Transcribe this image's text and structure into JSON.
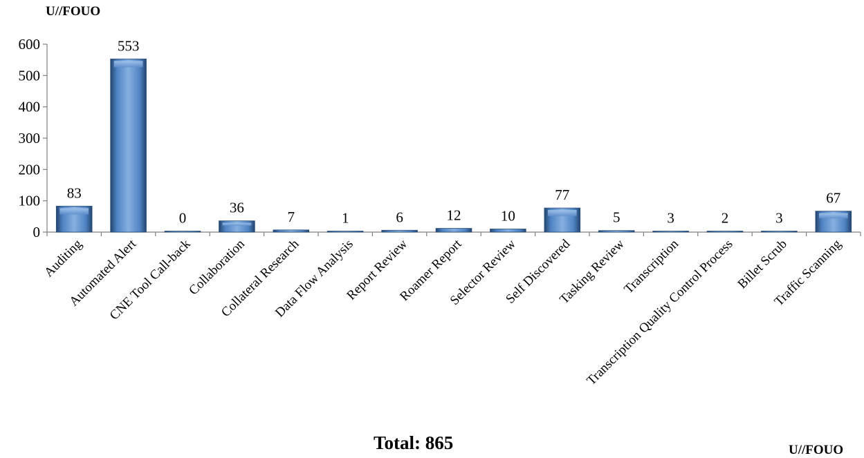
{
  "markings": {
    "top": "U//FOUO",
    "bottom": "U//FOUO"
  },
  "total_label": "Total: 865",
  "chart_data": {
    "type": "bar",
    "categories": [
      "Auditing",
      "Automated Alert",
      "CNE Tool Call-back",
      "Collaboration",
      "Collateral Research",
      "Data Flow Analysis",
      "Report Review",
      "Roamer Report",
      "Selector Review",
      "Self Discovered",
      "Tasking Review",
      "Transcription",
      "Transcription Quality Control Process",
      "Billet Scrub",
      "Traffic Scanning"
    ],
    "values": [
      83,
      553,
      0,
      36,
      7,
      1,
      6,
      12,
      10,
      77,
      5,
      3,
      2,
      3,
      67
    ],
    "ylim": [
      0,
      600
    ],
    "yticks": [
      0,
      100,
      200,
      300,
      400,
      500,
      600
    ],
    "grid": false,
    "data_labels": true,
    "bar_color": "#4a7ebf"
  }
}
